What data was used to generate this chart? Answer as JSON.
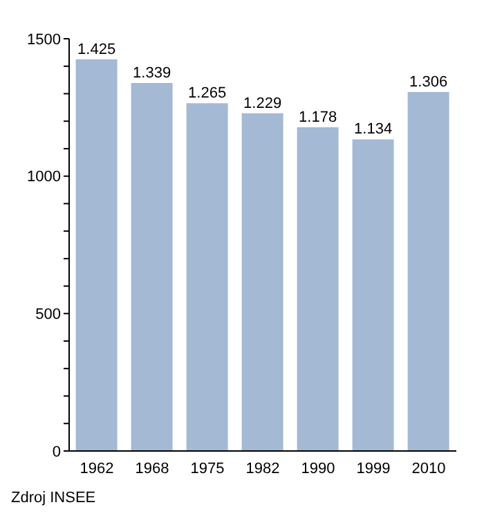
{
  "chart_data": {
    "type": "bar",
    "categories": [
      "1962",
      "1968",
      "1975",
      "1982",
      "1990",
      "1999",
      "2010"
    ],
    "values": [
      1425,
      1339,
      1265,
      1229,
      1178,
      1134,
      1306
    ],
    "value_labels": [
      "1.425",
      "1.339",
      "1.265",
      "1.229",
      "1.178",
      "1.134",
      "1.306"
    ],
    "color": "#a4b9d4",
    "ylim": [
      0,
      1500
    ],
    "yticks": [
      0,
      {
        "value": 100,
        "label": null
      },
      {
        "value": 200,
        "label": null
      },
      {
        "value": 300,
        "label": null
      },
      {
        "value": 400,
        "label": null
      },
      500,
      {
        "value": 600,
        "label": null
      },
      {
        "value": 700,
        "label": null
      },
      {
        "value": 800,
        "label": null
      },
      {
        "value": 900,
        "label": null
      },
      1000,
      {
        "value": 1100,
        "label": null
      },
      {
        "value": 1200,
        "label": null
      },
      {
        "value": 1300,
        "label": null
      },
      {
        "value": 1400,
        "label": null
      },
      1500
    ],
    "grid": false,
    "legend": false,
    "annotations": [
      "Zdroj INSEE"
    ]
  }
}
